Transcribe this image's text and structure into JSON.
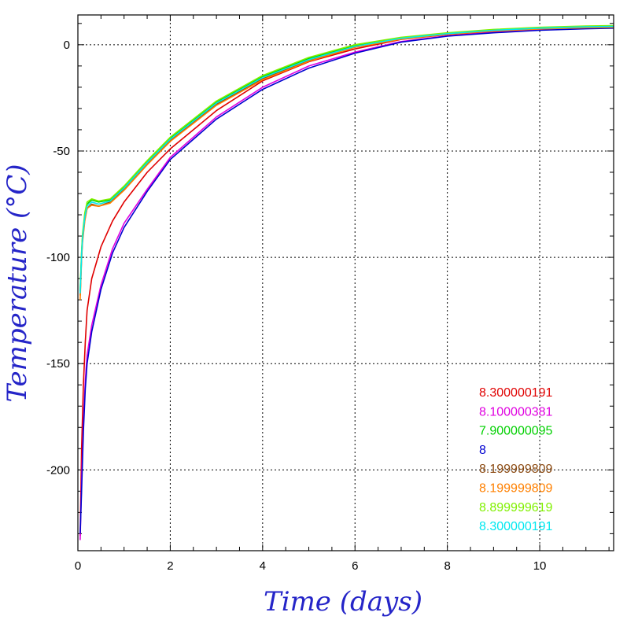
{
  "chart_data": {
    "type": "line",
    "xlabel": "Time (days)",
    "ylabel": "Temperature (°C)",
    "xlim": [
      0,
      11.6
    ],
    "ylim": [
      -238,
      14
    ],
    "x_ticks": [
      0,
      2,
      4,
      6,
      8,
      10
    ],
    "y_ticks": [
      0,
      -50,
      -100,
      -150,
      -200
    ],
    "grid": true,
    "grid_style": "dotted",
    "legend_position": "bottom-right",
    "series": [
      {
        "name": "8.300000191",
        "color": "#e00000",
        "x": [
          0.05,
          0.08,
          0.12,
          0.16,
          0.2,
          0.3,
          0.5,
          0.75,
          1.0,
          1.5,
          2,
          3,
          4,
          5,
          6,
          7,
          8,
          9,
          10,
          11,
          11.6
        ],
        "y": [
          -231,
          -190,
          -160,
          -140,
          -125,
          -110,
          -95,
          -83,
          -74,
          -60,
          -49,
          -31,
          -17,
          -8,
          -2,
          2.5,
          4.8,
          6.2,
          7.2,
          7.8,
          8.0
        ]
      },
      {
        "name": "8.100000381",
        "color": "#e000e0",
        "x": [
          0.05,
          0.08,
          0.12,
          0.16,
          0.2,
          0.3,
          0.5,
          0.75,
          1.0,
          1.5,
          2,
          3,
          4,
          5,
          6,
          7,
          8,
          9,
          10,
          11,
          11.6
        ],
        "y": [
          -233,
          -205,
          -178,
          -158,
          -146,
          -132,
          -113,
          -96,
          -84,
          -68,
          -53,
          -34,
          -20,
          -10,
          -3.5,
          1.5,
          4.2,
          5.8,
          7.0,
          7.8,
          8.0
        ]
      },
      {
        "name": "7.900000095",
        "color": "#00d000",
        "x": [
          0.05,
          0.08,
          0.1,
          0.15,
          0.2,
          0.3,
          0.45,
          0.7,
          1.0,
          1.5,
          2,
          3,
          4,
          5,
          6,
          7,
          8,
          9,
          10,
          11,
          11.6
        ],
        "y": [
          -116,
          -98,
          -90,
          -80,
          -75,
          -73,
          -74,
          -73,
          -67,
          -55,
          -44,
          -27,
          -15,
          -6.5,
          -0.5,
          3.0,
          5.2,
          6.8,
          7.8,
          8.5,
          8.7
        ]
      },
      {
        "name": "8",
        "color": "#0000d0",
        "x": [
          0.05,
          0.08,
          0.12,
          0.16,
          0.2,
          0.3,
          0.5,
          0.75,
          1.0,
          1.5,
          2,
          3,
          4,
          5,
          6,
          7,
          8,
          9,
          10,
          11,
          11.6
        ],
        "y": [
          -230,
          -210,
          -182,
          -162,
          -150,
          -135,
          -115,
          -98,
          -86,
          -69,
          -54,
          -35,
          -21,
          -11,
          -4.0,
          1.2,
          4.0,
          5.6,
          6.8,
          7.5,
          7.8
        ]
      },
      {
        "name": "8.199999809",
        "color": "#8b4a12",
        "x": [
          0.05,
          0.08,
          0.1,
          0.15,
          0.2,
          0.3,
          0.45,
          0.7,
          1.0,
          1.5,
          2,
          3,
          4,
          5,
          6,
          7,
          8,
          9,
          10,
          11,
          11.6
        ],
        "y": [
          -118,
          -100,
          -92,
          -82,
          -77,
          -75,
          -76,
          -74,
          -68,
          -56,
          -45,
          -28,
          -16,
          -7.5,
          -1.0,
          2.8,
          5.0,
          6.5,
          7.5,
          8.0,
          8.2
        ]
      },
      {
        "name": "8.199999809",
        "color": "#ff8000",
        "x": [
          0.05,
          0.08,
          0.1,
          0.15,
          0.2,
          0.3,
          0.45,
          0.7,
          1.0,
          1.5,
          2,
          3,
          4,
          5,
          6,
          7,
          8,
          9,
          10,
          11,
          11.6
        ],
        "y": [
          -120,
          -101,
          -93,
          -83,
          -77,
          -75.5,
          -76,
          -74.5,
          -68.5,
          -56.5,
          -45.5,
          -28.5,
          -16.5,
          -7.8,
          -1.2,
          2.6,
          4.9,
          6.4,
          7.4,
          8.0,
          8.2
        ]
      },
      {
        "name": "8.899999619",
        "color": "#80f000",
        "x": [
          0.05,
          0.08,
          0.1,
          0.15,
          0.2,
          0.3,
          0.45,
          0.7,
          1.0,
          1.5,
          2,
          3,
          4,
          5,
          6,
          7,
          8,
          9,
          10,
          11,
          11.6
        ],
        "y": [
          -115,
          -97,
          -89,
          -79,
          -74,
          -72.5,
          -73.5,
          -72.5,
          -66.5,
          -54.5,
          -43.5,
          -26.5,
          -14.5,
          -6.0,
          0.0,
          3.5,
          5.6,
          7.2,
          8.2,
          8.8,
          9.0
        ]
      },
      {
        "name": "8.300000191",
        "color": "#00e8f0",
        "x": [
          0.05,
          0.08,
          0.1,
          0.15,
          0.2,
          0.3,
          0.45,
          0.7,
          1.0,
          1.5,
          2,
          3,
          4,
          5,
          6,
          7,
          8,
          9,
          10,
          11,
          11.6
        ],
        "y": [
          -117,
          -99,
          -91,
          -81,
          -76,
          -74,
          -75,
          -73.5,
          -67.5,
          -55.5,
          -44.5,
          -27.5,
          -15.5,
          -7.0,
          -0.8,
          3.0,
          5.2,
          6.8,
          7.8,
          8.4,
          8.6
        ]
      }
    ]
  }
}
